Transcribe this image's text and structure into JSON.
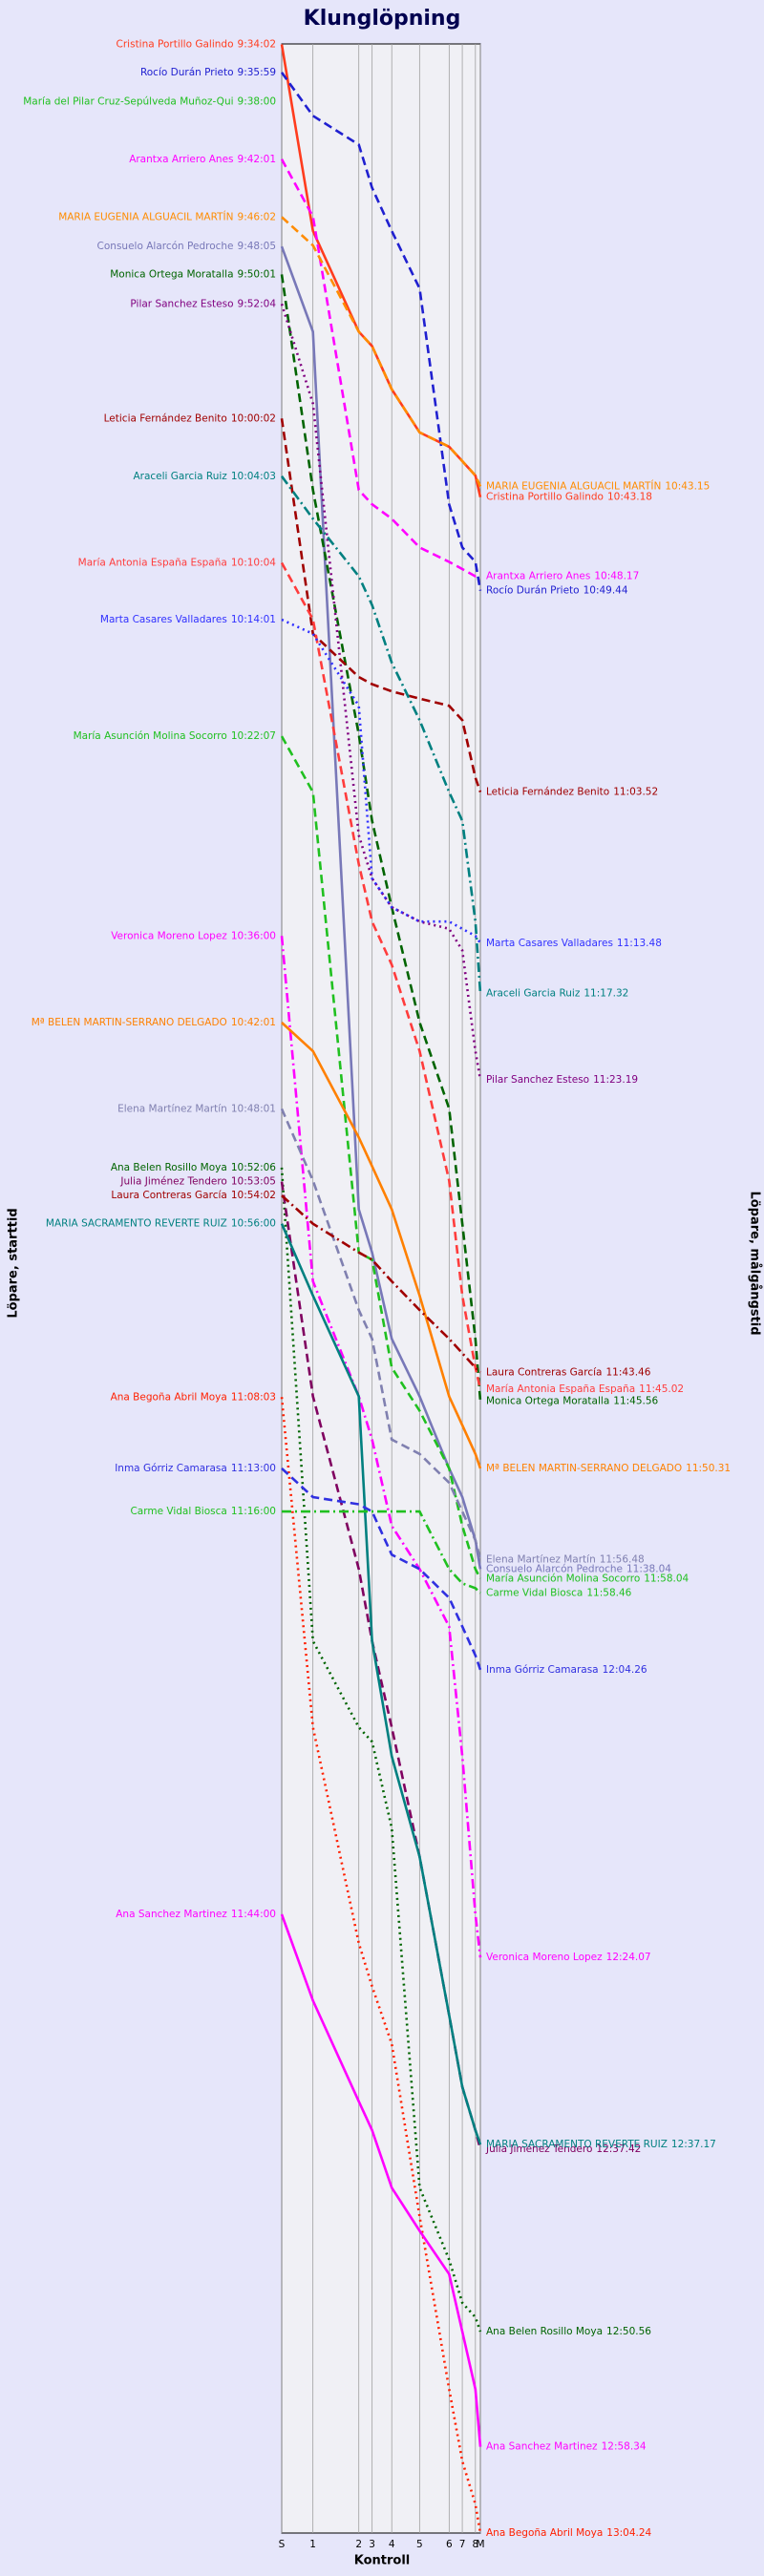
{
  "chart_data": {
    "type": "line",
    "title": "Klunglöpning",
    "x_label": "Kontroll",
    "y_label": "Löpare, starttid",
    "y2_label": "Löpare, målgångstid",
    "categories": [
      "S",
      "1",
      "2",
      "3",
      "4",
      "5",
      "6",
      "7",
      "8",
      "M"
    ],
    "ylim": [
      "9:34",
      "12:27"
    ],
    "series": [
      {
        "name": "Cristina Portillo Galindo",
        "color": "#ff3c1e",
        "style": "solid",
        "values": [
          "9:34:02",
          "9:47",
          "9:54",
          "9:55",
          "9:58",
          "10:01",
          "10:02",
          "10:03",
          "10:04",
          "10:05:30"
        ],
        "finish": "10:43.18"
      },
      {
        "name": "Rocío Durán Prieto",
        "color": "#2020d0",
        "style": "dashed",
        "values": [
          "9:35:59",
          "9:39",
          "9:41",
          "9:44",
          "9:47",
          "9:51",
          "10:06",
          "10:09",
          "10:10",
          "10:12"
        ],
        "finish": "10:49.44"
      },
      {
        "name": "María del Pilar Cruz-Sepúlveda Muñoz-Qui",
        "color": "#20c020",
        "style": "dashed",
        "values": [
          "9:38:00",
          null,
          null,
          null,
          null,
          null,
          null,
          null,
          null,
          null
        ]
      },
      {
        "name": "Arantxa Arriero Anes",
        "color": "#ff00ff",
        "style": "dashed",
        "values": [
          "9:42:01",
          "9:46",
          "10:05",
          "10:06",
          "10:07",
          "10:09",
          "10:10",
          "10:10:30",
          "10:11",
          "10:11"
        ],
        "finish": "10:48.17"
      },
      {
        "name": "MARIA EUGENIA ALGUACIL MARTÍN",
        "color": "#ff8c00",
        "style": "dashed",
        "values": [
          "9:46:02",
          "9:48",
          "9:54",
          "9:55",
          "9:58",
          "10:01",
          "10:02",
          "10:03",
          "10:04",
          "10:04:45"
        ],
        "finish": "10:43.15"
      },
      {
        "name": "Consuelo Alarcón  Pedroche",
        "color": "#7878b8",
        "style": "solid",
        "values": [
          "9:48:05",
          "9:54",
          "10:55",
          "10:58",
          "11:04",
          "11:08",
          "11:13",
          "11:15",
          "11:18",
          "11:20"
        ],
        "finish": "11:38.04"
      },
      {
        "name": "Monica Ortega Moratalla",
        "color": "#006400",
        "style": "dashed",
        "values": [
          "9:50:01",
          "10:05",
          "10:22",
          "10:28",
          "10:34",
          "10:42",
          "10:48",
          "10:56",
          "11:04",
          "11:08:20"
        ],
        "finish": "11:45.56"
      },
      {
        "name": "Pilar Sanchez Esteso",
        "color": "#800080",
        "style": "dotted",
        "values": [
          "9:52:04",
          "9:59",
          "10:29",
          "10:32",
          "10:34",
          "10:35",
          "10:35:30",
          "10:37",
          "10:44",
          "10:46"
        ],
        "finish": "11:23.19"
      },
      {
        "name": "Leticia Fernández Benito",
        "color": "#a00000",
        "style": "dashed",
        "values": [
          "10:00:02",
          "10:15",
          "10:18",
          "10:18:30",
          "10:19",
          "10:19:30",
          "10:20",
          "10:21",
          "10:25",
          "10:26"
        ],
        "finish": "11:03.52"
      },
      {
        "name": "Araceli Garcia Ruiz",
        "color": "#008080",
        "style": "dashdot",
        "values": [
          "10:04:03",
          "10:07",
          "10:11",
          "10:13",
          "10:17",
          "10:21",
          "10:26",
          "10:28",
          "10:35",
          "10:40"
        ],
        "finish": "11:17.32"
      },
      {
        "name": "María Antonia España  España",
        "color": "#ff3c3c",
        "style": "dashed",
        "values": [
          "10:10:04",
          "10:14",
          "10:31",
          "10:35",
          "10:38",
          "10:44",
          "10:53",
          "11:01",
          "11:06",
          "11:07:30"
        ],
        "finish": "11:45.02"
      },
      {
        "name": "Marta Casares Valladares",
        "color": "#3030ff",
        "style": "dotted",
        "values": [
          "10:14:01",
          "10:15",
          "10:20",
          "10:32",
          "10:34",
          "10:35",
          "10:35",
          "10:35:30",
          "10:36",
          "10:36:30"
        ],
        "finish": "11:13.48"
      },
      {
        "name": "María Asunción Molina Socorro",
        "color": "#20c020",
        "style": "dashed",
        "values": [
          "10:22:07",
          "10:26",
          "10:58",
          "10:58:30",
          "11:06",
          "11:09",
          "11:13",
          "11:17",
          "11:20",
          "11:20:40"
        ],
        "finish": "11:58.04"
      },
      {
        "name": "Veronica Moreno Lopez",
        "color": "#ff00ff",
        "style": "dashdot",
        "values": [
          "10:36:00",
          "11:00",
          "11:08",
          "11:11",
          "11:17",
          "11:20",
          "11:24",
          "11:33",
          "11:44",
          "11:47"
        ],
        "finish": "12:24.07"
      },
      {
        "name": "Mª BELEN MARTIN-SERRANO DELGADO",
        "color": "#ff8000",
        "style": "solid",
        "values": [
          "10:42:01",
          "10:44",
          "10:50",
          "10:52",
          "10:55",
          "11:01",
          "11:08",
          "11:10",
          "11:12",
          "11:13"
        ],
        "finish": "11:50.31"
      },
      {
        "name": "Elena Martínez Martín",
        "color": "#8080b0",
        "style": "dashed",
        "values": [
          "10:48:01",
          "10:53",
          "11:02",
          "11:04",
          "11:11",
          "11:12",
          "11:14",
          "11:16",
          "11:18",
          "11:19:20"
        ],
        "finish": "11:56.48"
      },
      {
        "name": "Ana Belen Rosillo Moya",
        "color": "#006400",
        "style": "dotted",
        "values": [
          "10:52:06",
          "11:25",
          "11:31",
          "11:32",
          "11:38",
          "12:03",
          "12:08",
          "12:11",
          "12:12",
          "12:13"
        ],
        "finish": "12:50.56"
      },
      {
        "name": "Julia Jiménez Tendero",
        "color": "#800060",
        "style": "dashed",
        "values": [
          "10:53:05",
          "11:08",
          "11:20",
          "11:25",
          "11:31",
          "11:40",
          "11:51",
          "11:56",
          "11:59",
          "12:00:20"
        ],
        "finish": "12:37.42"
      },
      {
        "name": "Laura Contreras García",
        "color": "#a00000",
        "style": "dashdot",
        "values": [
          "10:54:02",
          "10:56",
          "10:58",
          "10:58:30",
          "11:00",
          "11:02",
          "11:04",
          "11:05",
          "11:06",
          "11:06:20"
        ],
        "finish": "11:43.46"
      },
      {
        "name": "MARIA SACRAMENTO REVERTE RUIZ",
        "color": "#008080",
        "style": "solid",
        "values": [
          "10:56:00",
          "11:01",
          "11:08",
          "11:25",
          "11:33",
          "11:40",
          "11:51",
          "11:56",
          "11:59",
          "12:00"
        ],
        "finish": "12:37.17"
      },
      {
        "name": "Ana Begoña Abril Moya",
        "color": "#ff2000",
        "style": "dotted",
        "values": [
          "11:08:03",
          "11:31",
          "11:46",
          "11:49",
          "11:53",
          "12:05",
          "12:17",
          "12:22",
          "12:25",
          "12:27"
        ],
        "finish": "13:04.24"
      },
      {
        "name": "Inma Górriz Camarasa",
        "color": "#3030e0",
        "style": "dashed",
        "values": [
          "11:13:00",
          "11:15",
          "11:15:30",
          "11:16",
          "11:19",
          "11:20",
          "11:22",
          "11:24",
          "11:26",
          "11:27"
        ],
        "finish": "12:04.26"
      },
      {
        "name": "Carme Vidal Biosca",
        "color": "#20c020",
        "style": "dashdot",
        "values": [
          "11:16:00",
          "11:16",
          "11:16",
          "11:16",
          "11:16",
          "11:16",
          "11:20",
          "11:21",
          "11:21:20",
          "11:21:40"
        ],
        "finish": "11:58.46"
      },
      {
        "name": "Ana Sanchez Martinez",
        "color": "#ff00ff",
        "style": "solid",
        "values": [
          "11:44:00",
          "11:50",
          "11:57",
          "11:59",
          "12:03",
          "12:06",
          "12:09",
          "12:13",
          "12:17",
          "12:21"
        ],
        "finish": "12:58.34"
      }
    ]
  }
}
